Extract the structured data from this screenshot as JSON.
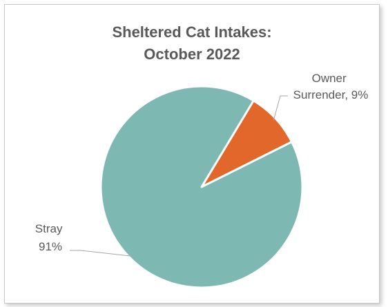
{
  "chart_data": {
    "type": "pie",
    "title": [
      "Sheltered Cat Intakes:",
      "October 2022"
    ],
    "categories": [
      "Owner Surrender",
      "Stray"
    ],
    "values": [
      9,
      91
    ],
    "unit": "%",
    "colors": [
      "#E2672A",
      "#7DB8B2"
    ],
    "data_labels": [
      [
        "Owner",
        "Surrender, 9%"
      ],
      [
        "Stray",
        "91%"
      ]
    ],
    "legend": "none"
  }
}
